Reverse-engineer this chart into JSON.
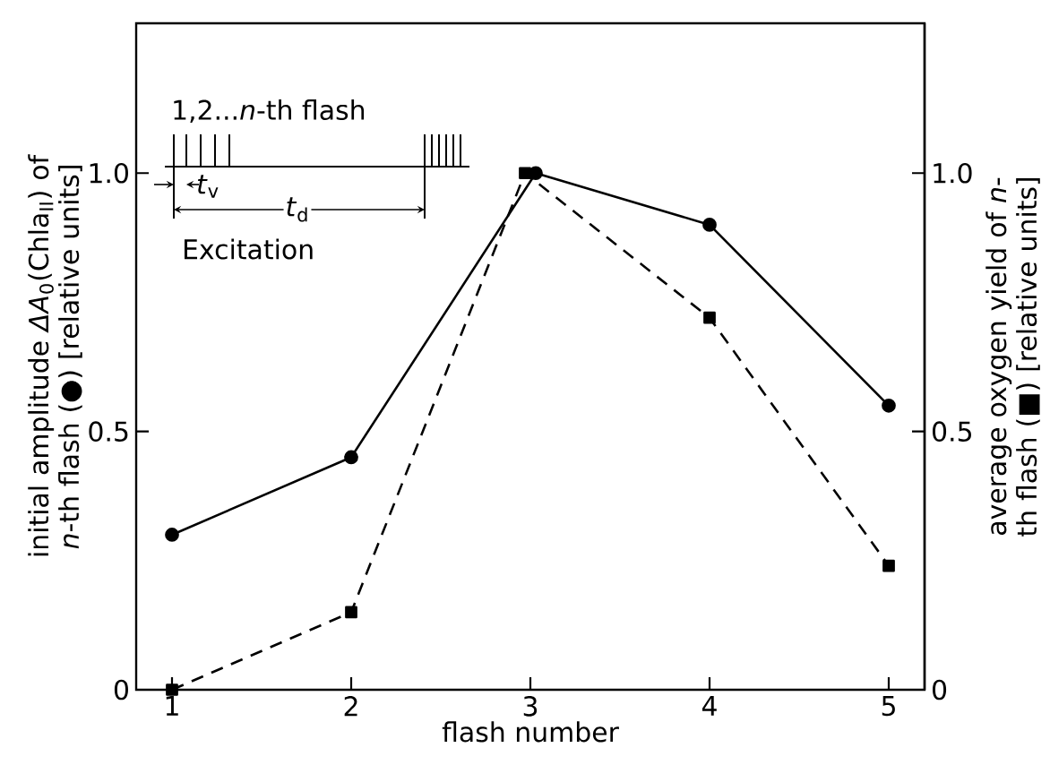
{
  "chart_data": {
    "type": "line",
    "xlabel": "flash number",
    "ylabel": "initial amplitude *ΔA*$_{0}$(Chla$_{II}$) of *n*-th flash (●) [relative units]",
    "y2label": "average oxygen yield of *n*-th flash (■) [relative units]",
    "xlim": [
      0.8,
      5.2
    ],
    "xticks": [
      1,
      2,
      3,
      4,
      5
    ],
    "ylim": [
      0,
      1.29
    ],
    "yticks": [
      0,
      {
        "value": 0.5,
        "label": "0.5"
      },
      {
        "value": 1,
        "label": "1.0"
      }
    ],
    "y2lim": [
      0,
      1.29
    ],
    "y2ticks": [
      0,
      {
        "value": 0.5,
        "label": "0.5"
      },
      {
        "value": 1,
        "label": "1.0"
      }
    ],
    "series": [
      {
        "color": "#000000",
        "marker": "circle",
        "line_style": "solid",
        "x": [
          1,
          2,
          3.03,
          4,
          5
        ],
        "values": [
          0.3,
          0.45,
          1.0,
          0.9,
          0.55
        ]
      },
      {
        "color": "#000000",
        "marker": "square",
        "line_style": "dashed",
        "axis": "y2",
        "x": [
          1,
          2,
          2.97,
          4,
          5
        ],
        "values": [
          0,
          0.15,
          1.0,
          0.72,
          0.24
        ]
      }
    ],
    "annotations": [
      "1,2...*n*-th flash",
      "*t*$_{v}$",
      "*t*$_{d}$",
      "Excitation"
    ]
  }
}
